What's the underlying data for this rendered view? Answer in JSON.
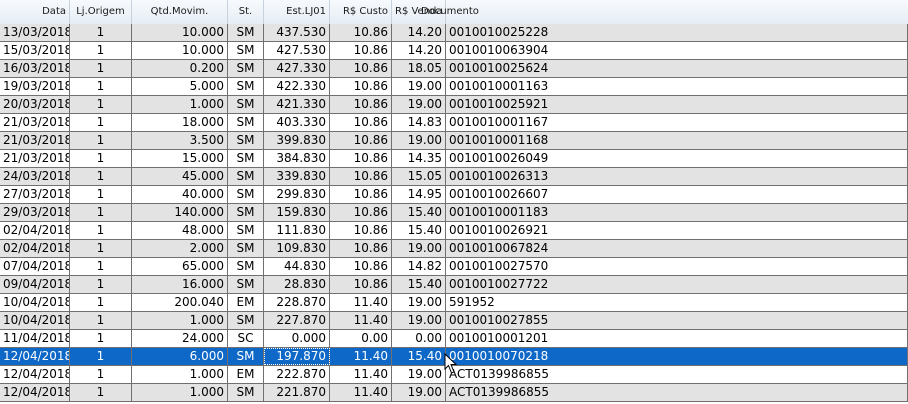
{
  "columns": [
    "Data",
    "Lj.Origem",
    "Qtd.Movim.",
    "St.",
    "Est.LJ01",
    "R$ Custo",
    "R$ Venda",
    "Documento"
  ],
  "selected_row_index": 18,
  "colors": {
    "row_alt": "#e3e3e3",
    "row_plain": "#ffffff",
    "row_selected": "#0e68c7",
    "header": "#e6edf5"
  },
  "rows": [
    [
      "13/03/2018",
      "1",
      "10.000",
      "SM",
      "437.530",
      "10.86",
      "14.20",
      "0010010025228"
    ],
    [
      "15/03/2018",
      "1",
      "10.000",
      "SM",
      "427.530",
      "10.86",
      "14.20",
      "0010010063904"
    ],
    [
      "16/03/2018",
      "1",
      "0.200",
      "SM",
      "427.330",
      "10.86",
      "18.05",
      "0010010025624"
    ],
    [
      "19/03/2018",
      "1",
      "5.000",
      "SM",
      "422.330",
      "10.86",
      "19.00",
      "0010010001163"
    ],
    [
      "20/03/2018",
      "1",
      "1.000",
      "SM",
      "421.330",
      "10.86",
      "19.00",
      "0010010025921"
    ],
    [
      "21/03/2018",
      "1",
      "18.000",
      "SM",
      "403.330",
      "10.86",
      "14.83",
      "0010010001167"
    ],
    [
      "21/03/2018",
      "1",
      "3.500",
      "SM",
      "399.830",
      "10.86",
      "19.00",
      "0010010001168"
    ],
    [
      "21/03/2018",
      "1",
      "15.000",
      "SM",
      "384.830",
      "10.86",
      "14.35",
      "0010010026049"
    ],
    [
      "24/03/2018",
      "1",
      "45.000",
      "SM",
      "339.830",
      "10.86",
      "15.05",
      "0010010026313"
    ],
    [
      "27/03/2018",
      "1",
      "40.000",
      "SM",
      "299.830",
      "10.86",
      "14.95",
      "0010010026607"
    ],
    [
      "29/03/2018",
      "1",
      "140.000",
      "SM",
      "159.830",
      "10.86",
      "15.40",
      "0010010001183"
    ],
    [
      "02/04/2018",
      "1",
      "48.000",
      "SM",
      "111.830",
      "10.86",
      "15.40",
      "0010010026921"
    ],
    [
      "02/04/2018",
      "1",
      "2.000",
      "SM",
      "109.830",
      "10.86",
      "19.00",
      "0010010067824"
    ],
    [
      "07/04/2018",
      "1",
      "65.000",
      "SM",
      "44.830",
      "10.86",
      "14.82",
      "0010010027570"
    ],
    [
      "09/04/2018",
      "1",
      "16.000",
      "SM",
      "28.830",
      "10.86",
      "15.40",
      "0010010027722"
    ],
    [
      "10/04/2018",
      "1",
      "200.040",
      "EM",
      "228.870",
      "11.40",
      "19.00",
      "591952"
    ],
    [
      "10/04/2018",
      "1",
      "1.000",
      "SM",
      "227.870",
      "11.40",
      "19.00",
      "0010010027855"
    ],
    [
      "11/04/2018",
      "1",
      "24.000",
      "SC",
      "0.000",
      "0.00",
      "0.00",
      "0010010001201"
    ],
    [
      "12/04/2018",
      "1",
      "6.000",
      "SM",
      "197.870",
      "11.40",
      "15.40",
      "0010010070218"
    ],
    [
      "12/04/2018",
      "1",
      "1.000",
      "EM",
      "222.870",
      "11.40",
      "19.00",
      "ACT0139986855"
    ],
    [
      "12/04/2018",
      "1",
      "1.000",
      "SM",
      "221.870",
      "11.40",
      "19.00",
      "ACT0139986855"
    ]
  ]
}
